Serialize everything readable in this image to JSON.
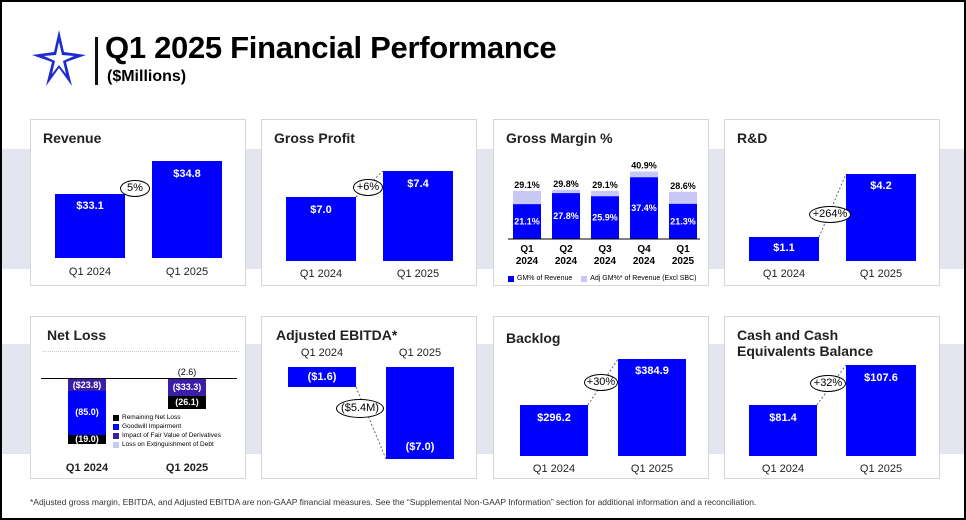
{
  "header": {
    "title": "Q1 2025 Financial Performance",
    "subtitle": "($Millions)"
  },
  "colors": {
    "bar": "#0000ff",
    "adj_bar": "#c8c8f4",
    "derivatives": "#3a1ea6",
    "band": "#e3e6ef"
  },
  "cards": {
    "revenue": {
      "title": "Revenue",
      "labels": [
        "Q1 2024",
        "Q1 2025"
      ],
      "values": [
        "$33.1",
        "$34.8"
      ],
      "change": "5%"
    },
    "gross_profit": {
      "title": "Gross Profit",
      "labels": [
        "Q1 2024",
        "Q1 2025"
      ],
      "values": [
        "$7.0",
        "$7.4"
      ],
      "change": "+6%"
    },
    "gross_margin": {
      "title": "Gross Margin %",
      "columns": [
        {
          "q": "Q1",
          "y": "2024",
          "gm": "21.1%",
          "adj": "29.1%"
        },
        {
          "q": "Q2",
          "y": "2024",
          "gm": "27.8%",
          "adj": "29.8%"
        },
        {
          "q": "Q3",
          "y": "2024",
          "gm": "25.9%",
          "adj": "29.1%"
        },
        {
          "q": "Q4",
          "y": "2024",
          "gm": "37.4%",
          "adj": "40.9%"
        },
        {
          "q": "Q1",
          "y": "2025",
          "gm": "21.3%",
          "adj": "28.6%"
        }
      ],
      "legend_gm": "GM% of Revenue",
      "legend_adj": "Adj GM%* of Revenue (Excl SBC)"
    },
    "rnd": {
      "title": "R&D",
      "labels": [
        "Q1 2024",
        "Q1 2025"
      ],
      "values": [
        "$1.1",
        "$4.2"
      ],
      "change": "+264%"
    },
    "net_loss": {
      "title": "Net Loss",
      "labels": [
        "Q1 2024",
        "Q1 2025"
      ],
      "q1_2024": {
        "derivatives": "($23.8)",
        "goodwill": "(85.0)",
        "remaining": "(19.0)"
      },
      "q1_2025": {
        "extinguishment": "(2.6)",
        "derivatives": "($33.3)",
        "remaining": "(26.1)"
      },
      "legend": [
        "Remaining Net Loss",
        "Goodwill Impairment",
        "Impact of Fair Value of Derivatives",
        "Loss on Extinguishment of Debt"
      ]
    },
    "ebitda": {
      "title": "Adjusted EBITDA*",
      "labels": [
        "Q1 2024",
        "Q1 2025"
      ],
      "values": [
        "($1.6)",
        "($7.0)"
      ],
      "change": "($5.4M)"
    },
    "backlog": {
      "title": "Backlog",
      "labels": [
        "Q1 2024",
        "Q1 2025"
      ],
      "values": [
        "$296.2",
        "$384.9"
      ],
      "change": "+30%"
    },
    "cash": {
      "title": "Cash and Cash Equivalents Balance",
      "labels": [
        "Q1 2024",
        "Q1 2025"
      ],
      "values": [
        "$81.4",
        "$107.6"
      ],
      "change": "+32%"
    }
  },
  "chart_data": [
    {
      "type": "bar",
      "title": "Revenue",
      "categories": [
        "Q1 2024",
        "Q1 2025"
      ],
      "values": [
        33.1,
        34.8
      ]
    },
    {
      "type": "bar",
      "title": "Gross Profit",
      "categories": [
        "Q1 2024",
        "Q1 2025"
      ],
      "values": [
        7.0,
        7.4
      ]
    },
    {
      "type": "bar",
      "title": "Gross Margin %",
      "categories": [
        "Q1 2024",
        "Q2 2024",
        "Q3 2024",
        "Q4 2024",
        "Q1 2025"
      ],
      "series": [
        {
          "name": "GM% of Revenue",
          "values": [
            21.1,
            27.8,
            25.9,
            37.4,
            21.3
          ]
        },
        {
          "name": "Adj GM%* of Revenue (Excl SBC)",
          "values": [
            29.1,
            29.8,
            29.1,
            40.9,
            28.6
          ]
        }
      ]
    },
    {
      "type": "bar",
      "title": "R&D",
      "categories": [
        "Q1 2024",
        "Q1 2025"
      ],
      "values": [
        1.1,
        4.2
      ]
    },
    {
      "type": "bar",
      "title": "Net Loss",
      "categories": [
        "Q1 2024",
        "Q1 2025"
      ],
      "series": [
        {
          "name": "Remaining Net Loss",
          "values": [
            -19.0,
            -26.1
          ]
        },
        {
          "name": "Goodwill Impairment",
          "values": [
            -85.0,
            0
          ]
        },
        {
          "name": "Impact of Fair Value of Derivatives",
          "values": [
            -23.8,
            -33.3
          ]
        },
        {
          "name": "Loss on Extinguishment of Debt",
          "values": [
            0,
            -2.6
          ]
        }
      ]
    },
    {
      "type": "bar",
      "title": "Adjusted EBITDA*",
      "categories": [
        "Q1 2024",
        "Q1 2025"
      ],
      "values": [
        -1.6,
        -7.0
      ]
    },
    {
      "type": "bar",
      "title": "Backlog",
      "categories": [
        "Q1 2024",
        "Q1 2025"
      ],
      "values": [
        296.2,
        384.9
      ]
    },
    {
      "type": "bar",
      "title": "Cash and Cash Equivalents Balance",
      "categories": [
        "Q1 2024",
        "Q1 2025"
      ],
      "values": [
        81.4,
        107.6
      ]
    }
  ],
  "footnote": "*Adjusted gross margin, EBITDA, and Adjusted EBITDA are non-GAAP financial measures. See the “Supplemental Non-GAAP Information” section for additional information and a reconciliation."
}
